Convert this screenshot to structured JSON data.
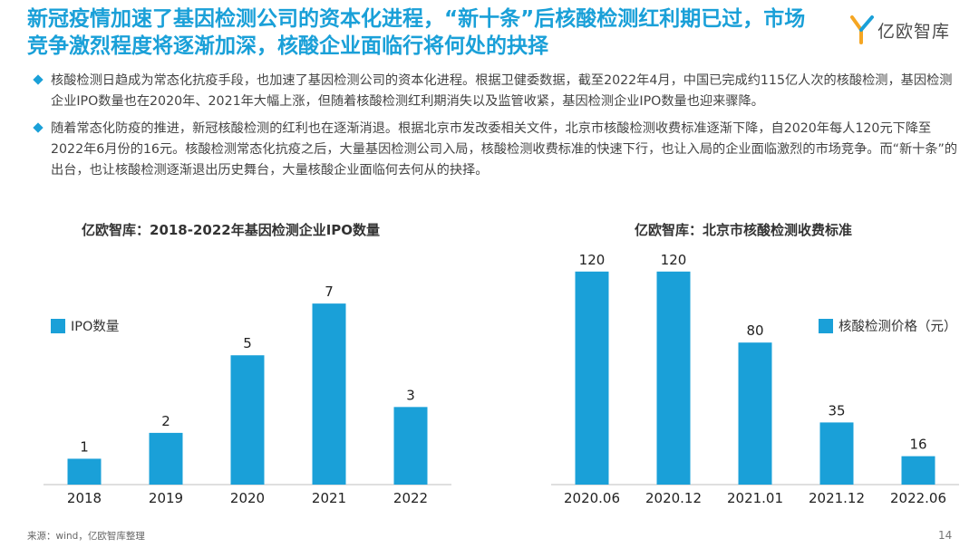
{
  "title": "新冠疫情加速了基因检测公司的资本化进程，“新十条”后核酸检测红利期已过，市场竞争激烈程度将逐渐加深，核酸企业面临行将何处的抉择",
  "logo": {
    "name": "亿欧智库",
    "icon": "yiou-logo-icon",
    "colors": [
      "#f5a623",
      "#1aa0d8"
    ]
  },
  "bullets": [
    "核酸检测日趋成为常态化抗疫手段，也加速了基因检测公司的资本化进程。根据卫健委数据，截至2022年4月，中国已完成约115亿人次的核酸检测，基因检测企业IPO数量也在2020年、2021年大幅上涨，但随着核酸检测红利期消失以及监管收紧，基因检测企业IPO数量也迎来骤降。",
    "随着常态化防疫的推进，新冠核酸检测的红利也在逐渐消退。根据北京市发改委相关文件，北京市核酸检测收费标准逐渐下降，自2020年每人120元下降至2022年6月份的16元。核酸检测常态化抗疫之后，大量基因检测公司入局，核酸检测收费标准的快速下行，也让入局的企业面临激烈的市场竞争。而“新十条”的出台，也让核酸检测逐渐退出历史舞台，大量核酸企业面临何去何从的抉择。"
  ],
  "chart_data": [
    {
      "type": "bar",
      "title": "亿欧智库：2018-2022年基因检测企业IPO数量",
      "categories": [
        "2018",
        "2019",
        "2020",
        "2021",
        "2022"
      ],
      "series": [
        {
          "name": "IPO数量",
          "values": [
            1,
            2,
            5,
            7,
            3
          ]
        }
      ],
      "ylim": [
        0,
        7.6
      ],
      "grid": false,
      "legend": "left",
      "color": "#1aa0d8"
    },
    {
      "type": "bar",
      "title": "亿欧智库：北京市核酸检测收费标准",
      "categories": [
        "2020.06",
        "2020.12",
        "2021.01",
        "2021.12",
        "2022.06"
      ],
      "series": [
        {
          "name": "核酸检测价格（元）",
          "values": [
            120,
            120,
            80,
            35,
            16
          ]
        }
      ],
      "ylim": [
        0,
        125
      ],
      "grid": false,
      "legend": "right",
      "color": "#1aa0d8"
    }
  ],
  "source": "来源：wind，亿欧智库整理",
  "page_number": "14"
}
